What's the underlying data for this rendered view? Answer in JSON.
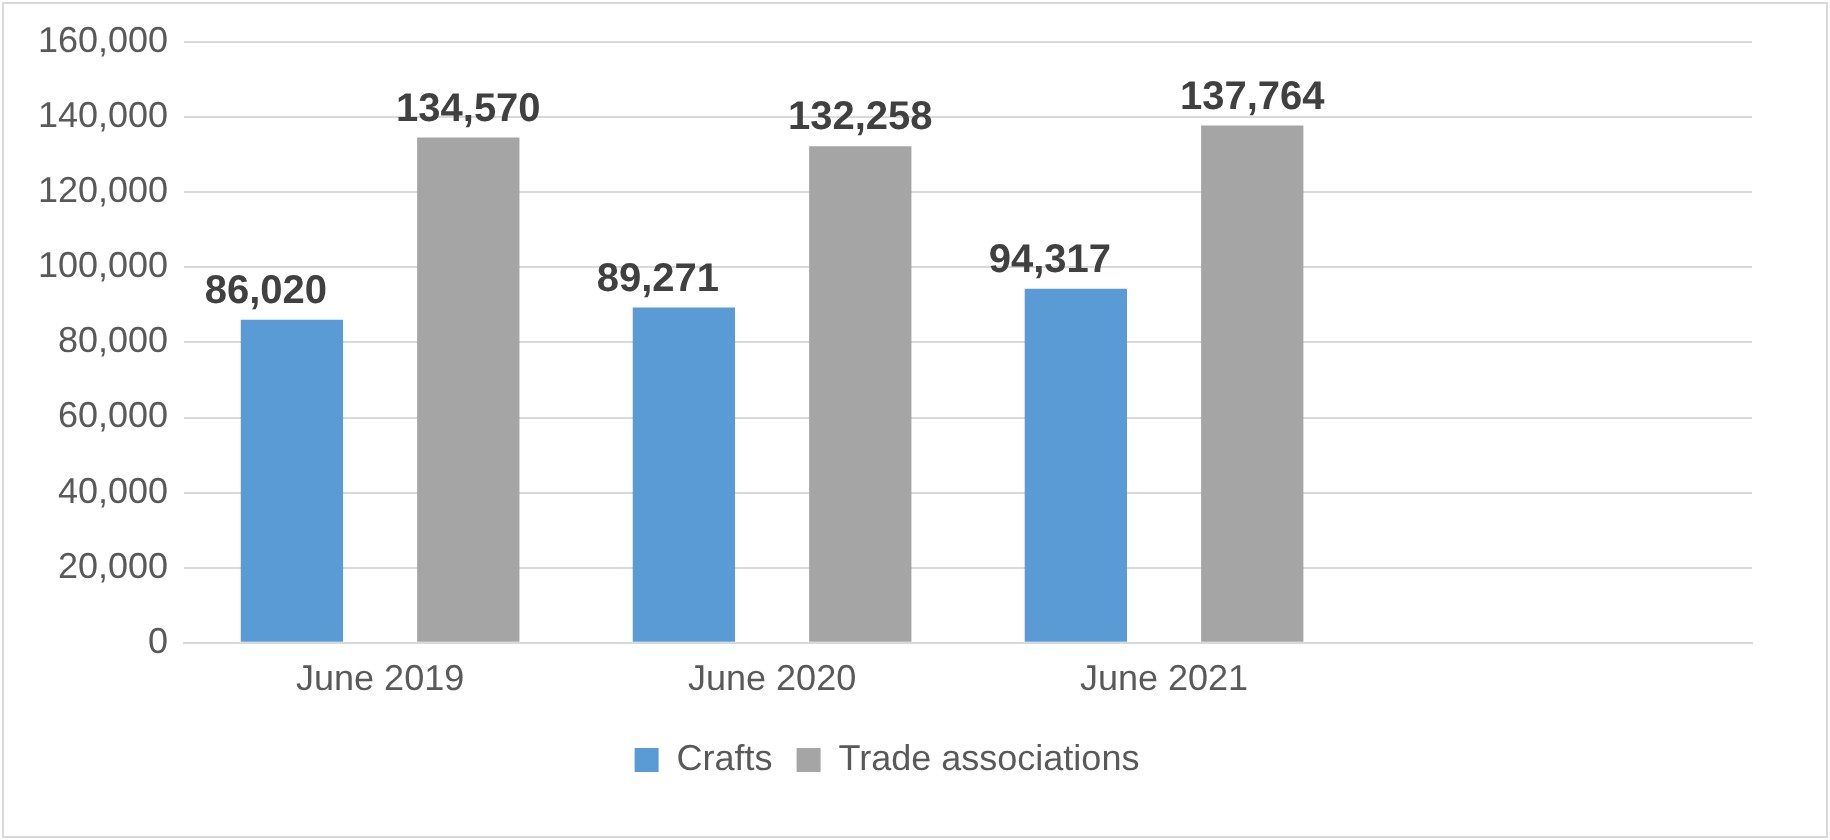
{
  "chart_data": {
    "type": "bar",
    "categories": [
      "June 2019",
      "June 2020",
      "June 2021",
      null
    ],
    "series": [
      {
        "name": "Crafts",
        "color": "#5b9bd5",
        "values": [
          86020,
          89271,
          94317,
          null
        ],
        "value_labels": [
          "86,020",
          "89,271",
          "94,317",
          null
        ]
      },
      {
        "name": "Trade associations",
        "color": "#a5a5a5",
        "values": [
          134570,
          132258,
          137764,
          null
        ],
        "value_labels": [
          "134,570",
          "132,258",
          "137,764",
          null
        ]
      }
    ],
    "ylim": [
      0,
      160000
    ],
    "yticks": [
      {
        "value": 0,
        "label": "0"
      },
      {
        "value": 20000,
        "label": "20,000"
      },
      {
        "value": 40000,
        "label": "40,000"
      },
      {
        "value": 60000,
        "label": "60,000"
      },
      {
        "value": 80000,
        "label": "80,000"
      },
      {
        "value": 100000,
        "label": "100,000"
      },
      {
        "value": 120000,
        "label": "120,000"
      },
      {
        "value": 140000,
        "label": "140,000"
      },
      {
        "value": 160000,
        "label": "160,000"
      }
    ],
    "grid": "y",
    "legend": "bottom"
  }
}
